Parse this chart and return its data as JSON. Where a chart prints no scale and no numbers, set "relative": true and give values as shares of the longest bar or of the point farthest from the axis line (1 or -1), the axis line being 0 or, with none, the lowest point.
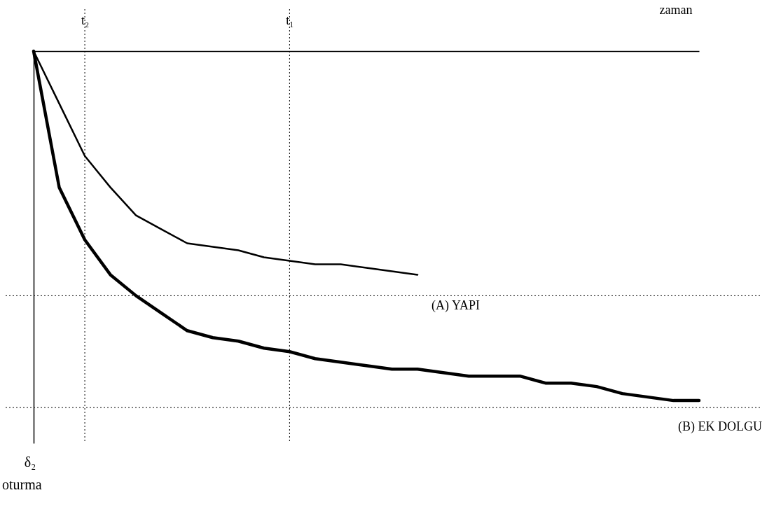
{
  "chart_data": {
    "type": "line",
    "relative": true,
    "xlabel": "zaman",
    "categories": [
      null,
      null,
      "t₂",
      null,
      null,
      null,
      null,
      null,
      null,
      null,
      "t₁",
      null,
      null,
      null,
      null,
      null,
      null,
      null,
      null,
      null,
      null,
      null,
      null,
      null,
      null,
      null,
      null
    ],
    "series": [
      {
        "name": "(A) YAPI",
        "color": "#000000",
        "values": [
          0,
          -0.15,
          -0.3,
          -0.39,
          -0.47,
          -0.51,
          -0.55,
          -0.56,
          -0.57,
          -0.59,
          -0.6,
          -0.61,
          -0.61,
          -0.62,
          -0.63,
          -0.64,
          null,
          null,
          null,
          null,
          null,
          null,
          null,
          null,
          null,
          null,
          null
        ]
      },
      {
        "name": "(B) EK DOLGU",
        "color": "#000000",
        "values": [
          0,
          -0.39,
          -0.54,
          -0.64,
          -0.7,
          -0.75,
          -0.8,
          -0.82,
          -0.83,
          -0.85,
          -0.86,
          -0.88,
          -0.89,
          -0.9,
          -0.91,
          -0.91,
          -0.92,
          -0.93,
          -0.93,
          -0.93,
          -0.95,
          -0.95,
          -0.96,
          -0.98,
          -0.99,
          -1.0,
          -1.0
        ]
      }
    ],
    "ref_lines": [
      {
        "axis": "x",
        "value": "t₂",
        "line_style": "dotted"
      },
      {
        "axis": "x",
        "value": "t₁",
        "line_style": "dotted"
      },
      {
        "axis": "y",
        "value": -0.7,
        "line_style": "dotted"
      },
      {
        "axis": "y",
        "value": -1.02,
        "line_style": "dotted"
      }
    ],
    "annotations": [
      "δ₂",
      "oturma"
    ],
    "legend": false,
    "grid": false,
    "marker": "none",
    "line_style": "solid"
  }
}
